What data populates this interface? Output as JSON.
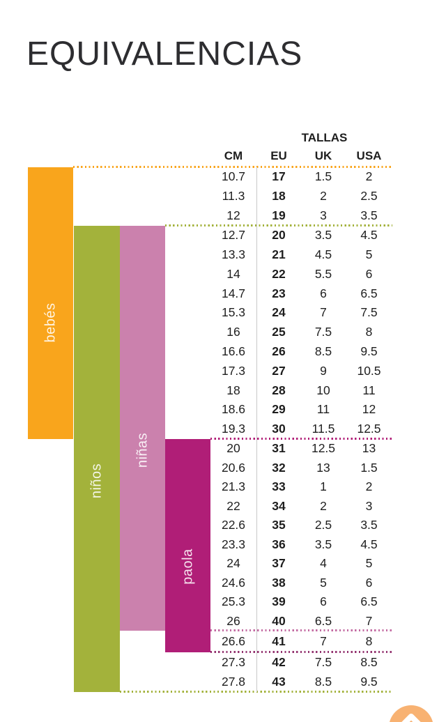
{
  "page": {
    "title": "EQUIVALENCIAS"
  },
  "chart_data": {
    "type": "table",
    "title": "EQUIVALENCIAS",
    "group_header": "TALLAS",
    "columns": [
      "CM",
      "EU",
      "UK",
      "USA"
    ],
    "sections": [
      {
        "name": "eu-17-19",
        "divider_color": "#F9A51C",
        "rows": [
          [
            "10.7",
            "17",
            "1.5",
            "2"
          ],
          [
            "11.3",
            "18",
            "2",
            "2.5"
          ],
          [
            "12",
            "19",
            "3",
            "3.5"
          ]
        ]
      },
      {
        "name": "eu-20-30",
        "divider_color": "#A3B23B",
        "rows": [
          [
            "12.7",
            "20",
            "3.5",
            "4.5"
          ],
          [
            "13.3",
            "21",
            "4.5",
            "5"
          ],
          [
            "14",
            "22",
            "5.5",
            "6"
          ],
          [
            "14.7",
            "23",
            "6",
            "6.5"
          ],
          [
            "15.3",
            "24",
            "7",
            "7.5"
          ],
          [
            "16",
            "25",
            "7.5",
            "8"
          ],
          [
            "16.6",
            "26",
            "8.5",
            "9.5"
          ],
          [
            "17.3",
            "27",
            "9",
            "10.5"
          ],
          [
            "18",
            "28",
            "10",
            "11"
          ],
          [
            "18.6",
            "29",
            "11",
            "12"
          ],
          [
            "19.3",
            "30",
            "11.5",
            "12.5"
          ]
        ]
      },
      {
        "name": "eu-31-40",
        "divider_color": "#B01E77",
        "rows": [
          [
            "20",
            "31",
            "12.5",
            "13"
          ],
          [
            "20.6",
            "32",
            "13",
            "1.5"
          ],
          [
            "21.3",
            "33",
            "1",
            "2"
          ],
          [
            "22",
            "34",
            "2",
            "3"
          ],
          [
            "22.6",
            "35",
            "2.5",
            "3.5"
          ],
          [
            "23.3",
            "36",
            "3.5",
            "4.5"
          ],
          [
            "24",
            "37",
            "4",
            "5"
          ],
          [
            "24.6",
            "38",
            "5",
            "6"
          ],
          [
            "25.3",
            "39",
            "6",
            "6.5"
          ],
          [
            "26",
            "40",
            "6.5",
            "7"
          ]
        ]
      },
      {
        "name": "eu-41",
        "divider_color": "#C36BA2",
        "rows": [
          [
            "26.6",
            "41",
            "7",
            "8"
          ]
        ]
      },
      {
        "name": "eu-42-43",
        "divider_color": "#93326F",
        "rows": [
          [
            "27.3",
            "42",
            "7.5",
            "8.5"
          ],
          [
            "27.8",
            "43",
            "8.5",
            "9.5"
          ]
        ]
      }
    ],
    "bottom_divider_color": "#A3B23B",
    "categories": [
      {
        "label": "bebés",
        "color": "#F9A51C",
        "eu_from": 17,
        "eu_to": 30
      },
      {
        "label": "niños",
        "color": "#A3B23B",
        "eu_from": 20,
        "eu_to": 43
      },
      {
        "label": "niñas",
        "color": "#CB81AD",
        "eu_from": 20,
        "eu_to": 40
      },
      {
        "label": "paola",
        "color": "#B01E77",
        "eu_from": 31,
        "eu_to": 41
      }
    ]
  },
  "scroll_top_button": {
    "color": "#F8B272",
    "icon": "chevron-up-icon"
  }
}
